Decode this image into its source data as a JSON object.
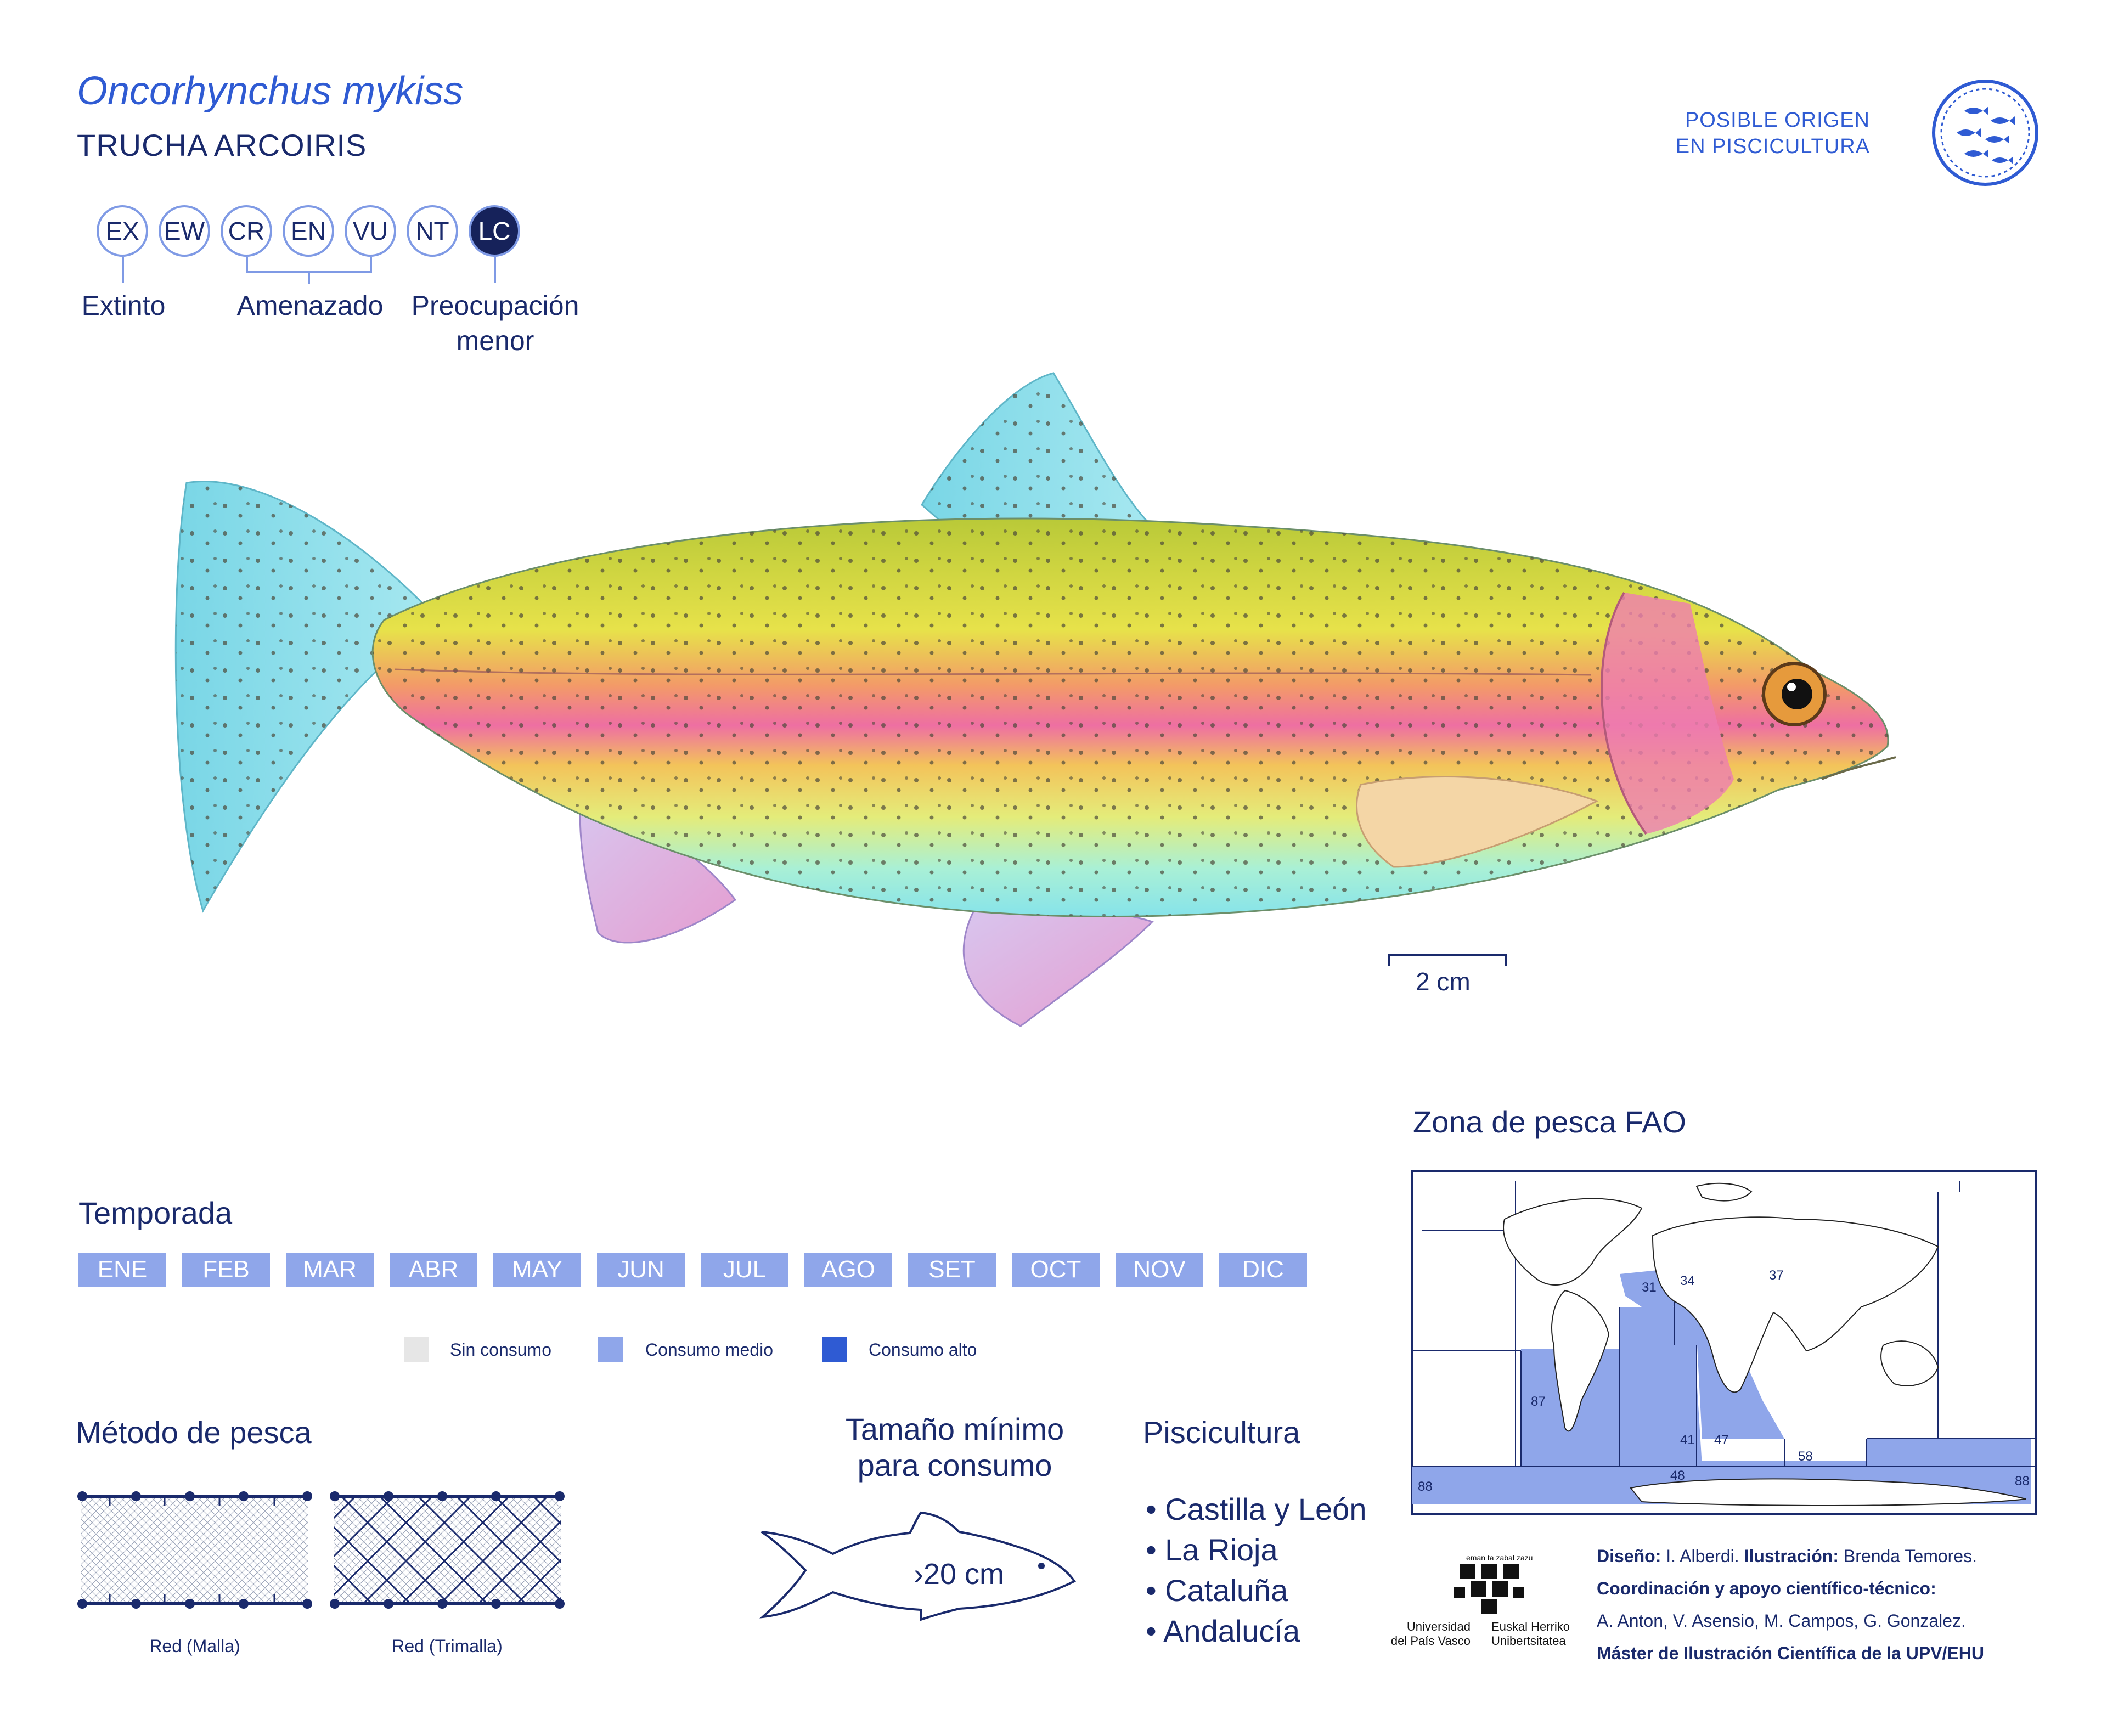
{
  "species": {
    "scientific_name": "Oncorhynchus mykiss",
    "common_name": "TRUCHA ARCOIRIS"
  },
  "iucn": {
    "categories": [
      "EX",
      "EW",
      "CR",
      "EN",
      "VU",
      "NT",
      "LC"
    ],
    "active": "LC",
    "labels": {
      "extinct": "Extinto",
      "threatened": "Amenazado",
      "least_concern_line1": "Preocupación",
      "least_concern_line2": "menor"
    }
  },
  "origin_badge": {
    "line1": "POSIBLE ORIGEN",
    "line2": "EN PISCICULTURA",
    "icon": "fish-school-icon"
  },
  "illustration": {
    "subject": "rainbow-trout-illustration",
    "scale_label": "2 cm"
  },
  "season": {
    "title": "Temporada",
    "months": [
      "ENE",
      "FEB",
      "MAR",
      "ABR",
      "MAY",
      "JUN",
      "JUL",
      "AGO",
      "SET",
      "OCT",
      "NOV",
      "DIC"
    ],
    "month_levels": [
      "medio",
      "medio",
      "medio",
      "medio",
      "medio",
      "medio",
      "medio",
      "medio",
      "medio",
      "medio",
      "medio",
      "medio"
    ],
    "legend": [
      {
        "label": "Sin consumo",
        "color": "#e6e6e6"
      },
      {
        "label": "Consumo medio",
        "color": "#8fa6ea"
      },
      {
        "label": "Consumo alto",
        "color": "#2f5bd3"
      }
    ]
  },
  "fishing_method": {
    "title": "Método de pesca",
    "nets": [
      {
        "label": "Red (Malla)"
      },
      {
        "label": "Red (Trimalla)"
      }
    ]
  },
  "min_size": {
    "title_line1": "Tamaño mínimo",
    "title_line2": "para consumo",
    "value": "›20 cm"
  },
  "aquaculture": {
    "title": "Piscicultura",
    "regions": [
      "• Castilla y León",
      "• La Rioja",
      "• Cataluña",
      "• Andalucía"
    ]
  },
  "fao_zone": {
    "title": "Zona de pesca FAO",
    "highlight_color": "#8fa6ea",
    "zones": [
      "31",
      "34",
      "37",
      "87",
      "41",
      "47",
      "48",
      "58",
      "88",
      "88"
    ]
  },
  "university": {
    "motto": "eman ta zabal zazu",
    "left_line1": "Universidad",
    "left_line2": "del País Vasco",
    "right_line1": "Euskal Herriko",
    "right_line2": "Unibertsitatea"
  },
  "credits": {
    "design_label": "Diseño:",
    "design_value": " I. Alberdi.",
    "illustration_label": " Ilustración:",
    "illustration_value": " Brenda Temores.",
    "coordination": "Coordinación y apoyo científico-técnico:",
    "names": "A. Anton, V. Asensio, M. Campos, G. Gonzalez.",
    "master": "Máster de Ilustración Científica de la UPV/EHU"
  }
}
